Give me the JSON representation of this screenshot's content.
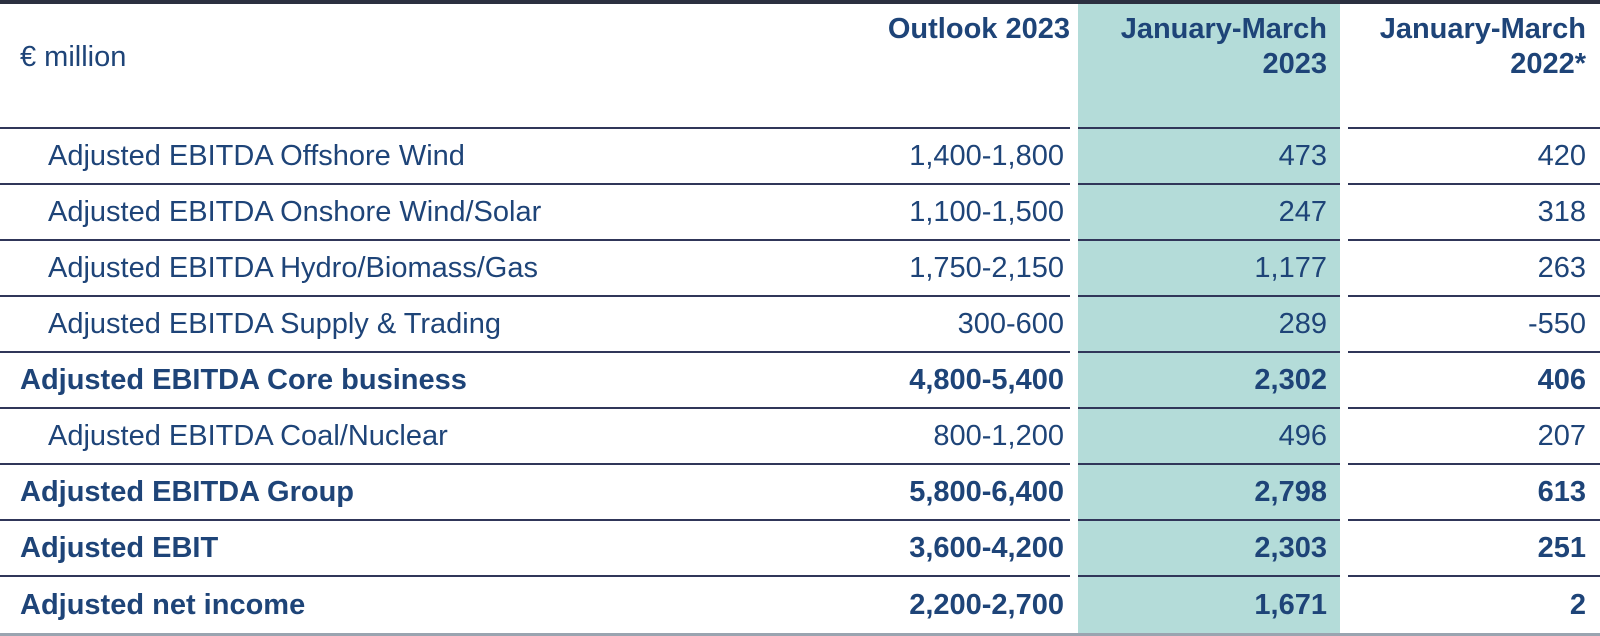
{
  "table": {
    "unit_label": "€ million",
    "columns": {
      "outlook": "Outlook 2023",
      "jan_mar_2023": "January-March 2023",
      "jan_mar_2022": "January-March 2022*"
    },
    "highlight_color": "#b4dcd9",
    "text_color": "#1e4478",
    "rows": [
      {
        "label": "Adjusted EBITDA Offshore Wind",
        "outlook": "1,400-1,800",
        "jan_mar_2023": "473",
        "jan_mar_2022": "420",
        "bold": false
      },
      {
        "label": "Adjusted EBITDA Onshore Wind/Solar",
        "outlook": "1,100-1,500",
        "jan_mar_2023": "247",
        "jan_mar_2022": "318",
        "bold": false
      },
      {
        "label": "Adjusted EBITDA Hydro/Biomass/Gas",
        "outlook": "1,750-2,150",
        "jan_mar_2023": "1,177",
        "jan_mar_2022": "263",
        "bold": false
      },
      {
        "label": "Adjusted EBITDA Supply & Trading",
        "outlook": "300-600",
        "jan_mar_2023": "289",
        "jan_mar_2022": "-550",
        "bold": false
      },
      {
        "label": "Adjusted EBITDA Core business",
        "outlook": "4,800-5,400",
        "jan_mar_2023": "2,302",
        "jan_mar_2022": "406",
        "bold": true
      },
      {
        "label": "Adjusted EBITDA Coal/Nuclear",
        "outlook": "800-1,200",
        "jan_mar_2023": "496",
        "jan_mar_2022": "207",
        "bold": false
      },
      {
        "label": "Adjusted EBITDA Group",
        "outlook": "5,800-6,400",
        "jan_mar_2023": "2,798",
        "jan_mar_2022": "613",
        "bold": true
      },
      {
        "label": "Adjusted EBIT",
        "outlook": "3,600-4,200",
        "jan_mar_2023": "2,303",
        "jan_mar_2022": "251",
        "bold": true
      },
      {
        "label": "Adjusted net income",
        "outlook": "2,200-2,700",
        "jan_mar_2023": "1,671",
        "jan_mar_2022": "2",
        "bold": true
      }
    ]
  }
}
